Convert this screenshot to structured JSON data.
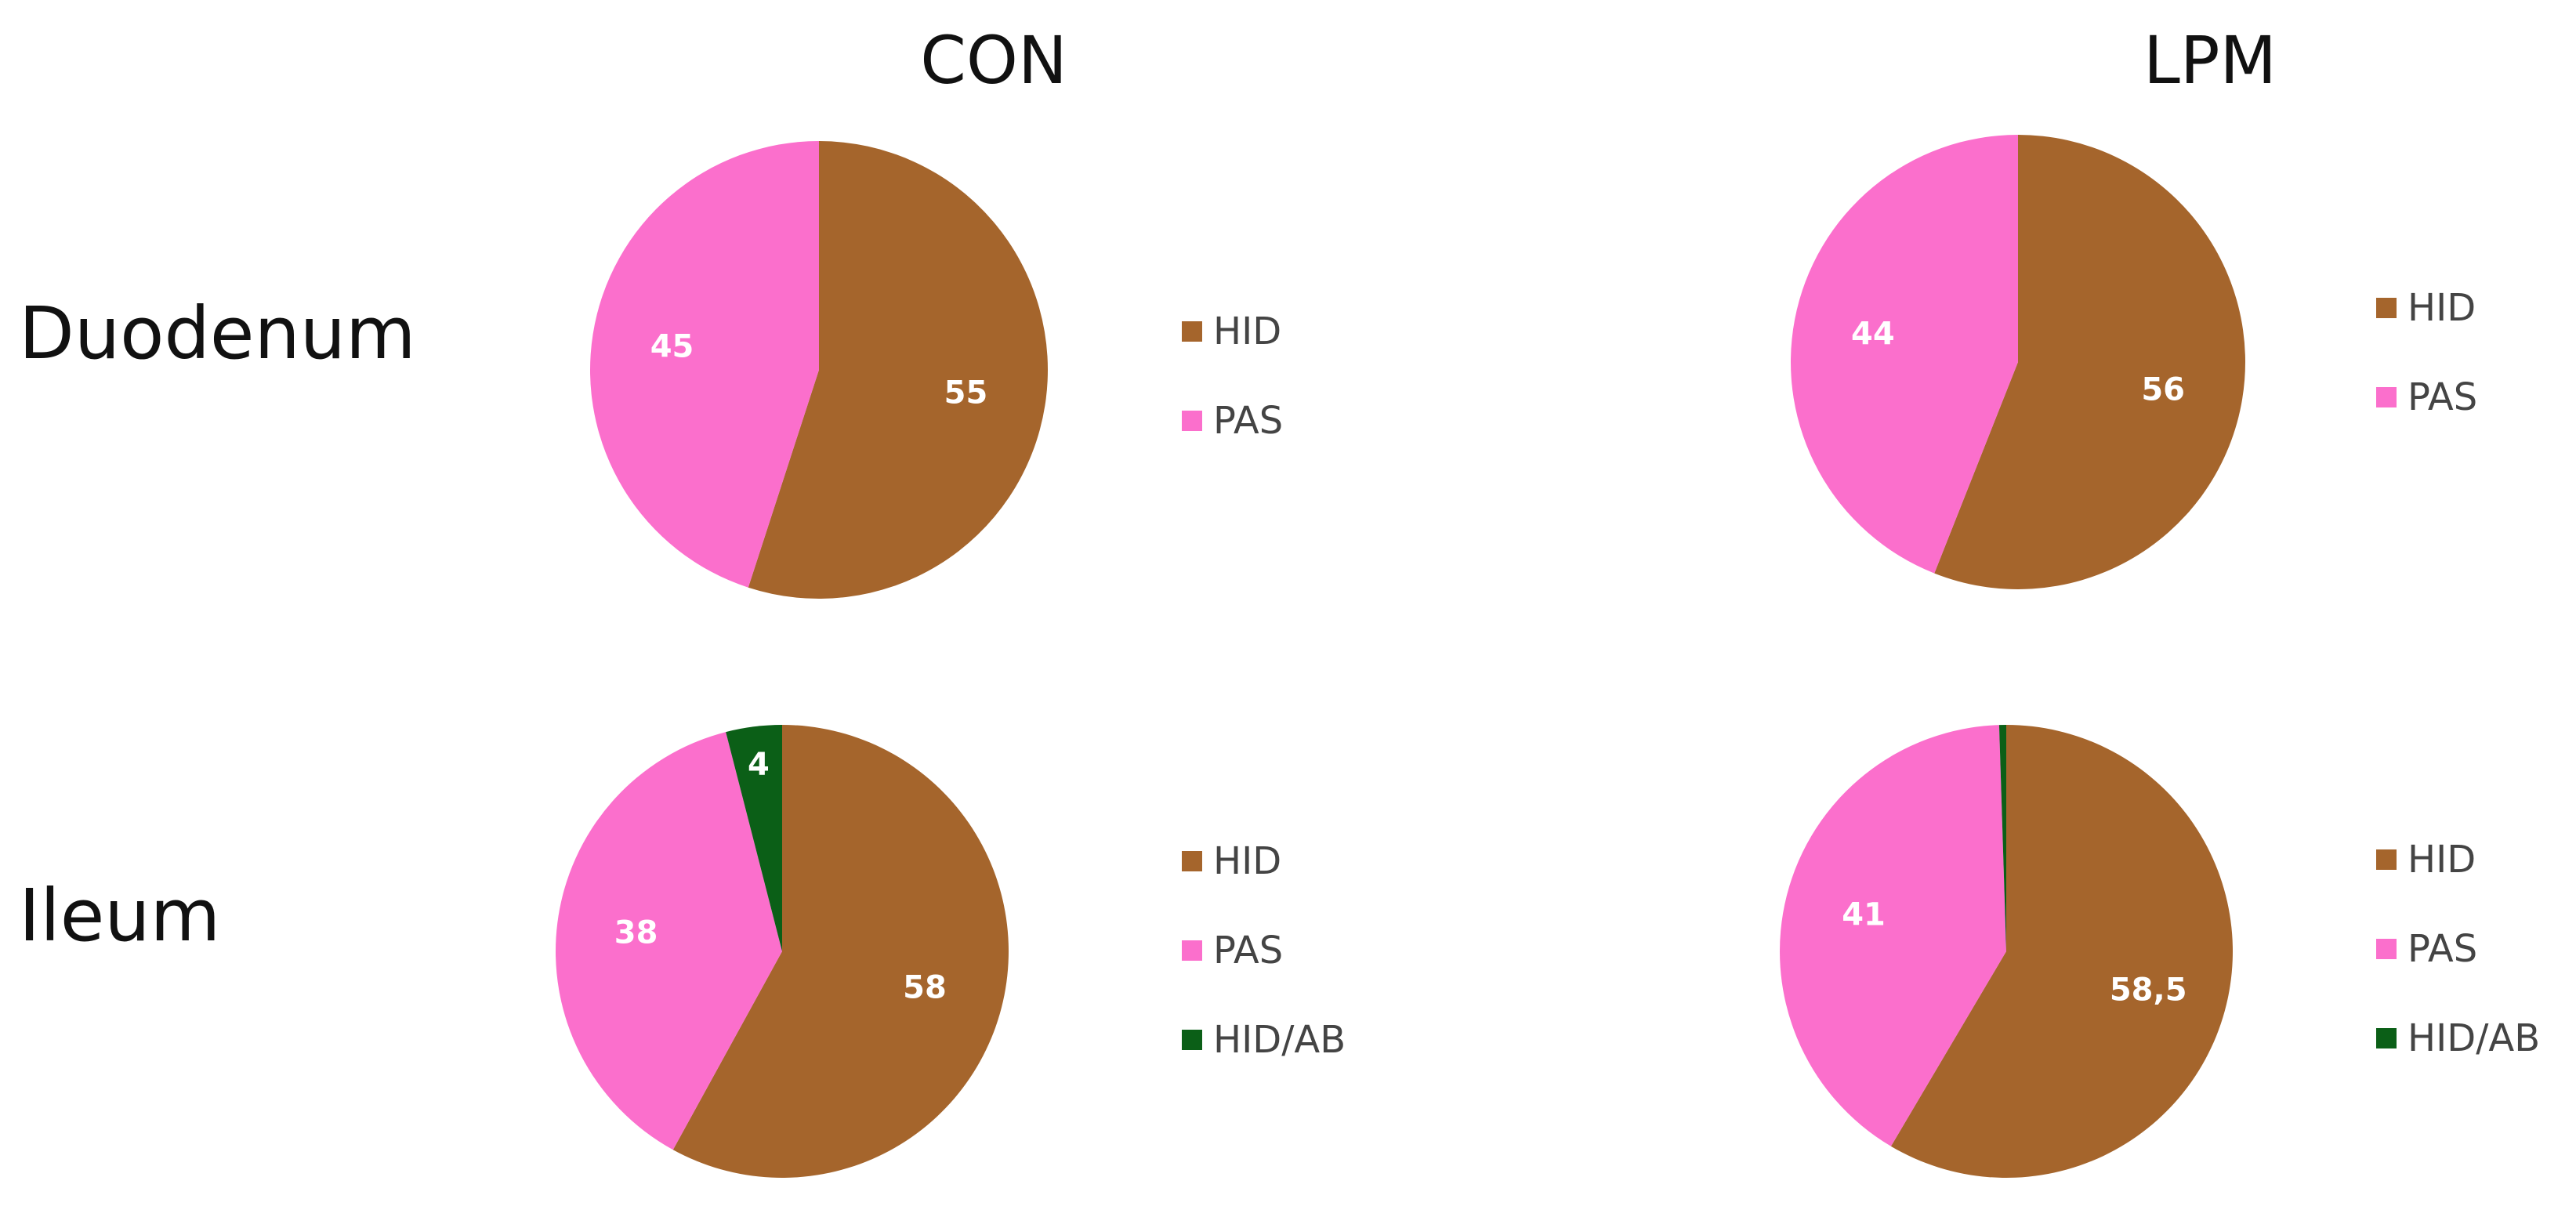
{
  "columns": [
    "CON",
    "LPM"
  ],
  "rows": [
    "Duodenum",
    "Ileum"
  ],
  "colors": {
    "HID": "#a5652c",
    "PAS": "#fb6fcc",
    "HID/AB": "#0b5f17"
  },
  "chart_data": [
    {
      "type": "pie",
      "column": "CON",
      "row": "Duodenum",
      "slices": [
        {
          "label": "HID",
          "value": 55,
          "display": "55"
        },
        {
          "label": "PAS",
          "value": 45,
          "display": "45"
        }
      ],
      "legend": [
        "HID",
        "PAS"
      ],
      "legend_position": "right"
    },
    {
      "type": "pie",
      "column": "LPM",
      "row": "Duodenum",
      "slices": [
        {
          "label": "HID",
          "value": 56,
          "display": "56"
        },
        {
          "label": "PAS",
          "value": 44,
          "display": "44"
        }
      ],
      "legend": [
        "HID",
        "PAS"
      ],
      "legend_position": "right"
    },
    {
      "type": "pie",
      "column": "CON",
      "row": "Ileum",
      "slices": [
        {
          "label": "HID",
          "value": 58,
          "display": "58"
        },
        {
          "label": "PAS",
          "value": 38,
          "display": "38"
        },
        {
          "label": "HID/AB",
          "value": 4,
          "display": "4"
        }
      ],
      "legend": [
        "HID",
        "PAS",
        "HID/AB"
      ],
      "legend_position": "right"
    },
    {
      "type": "pie",
      "column": "LPM",
      "row": "Ileum",
      "slices": [
        {
          "label": "HID",
          "value": 58.5,
          "display": "58,5"
        },
        {
          "label": "PAS",
          "value": 41,
          "display": "41"
        },
        {
          "label": "HID/AB",
          "value": 0.5,
          "display": ""
        }
      ],
      "legend": [
        "HID",
        "PAS",
        "HID/AB"
      ],
      "legend_position": "right"
    }
  ]
}
